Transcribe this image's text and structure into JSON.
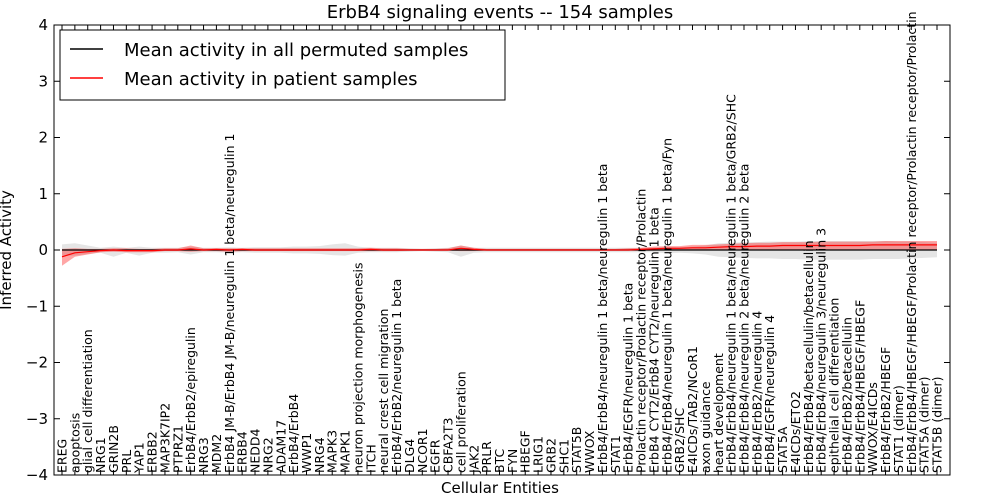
{
  "chart_data": {
    "type": "line",
    "title": "ErbB4 signaling events -- 154 samples",
    "xlabel": "Cellular Entities",
    "ylabel": "Inferred Activity",
    "ylim": [
      -4,
      4
    ],
    "yticks": [
      -4,
      -3,
      -2,
      -1,
      0,
      1,
      2,
      3,
      4
    ],
    "grid": false,
    "legend_position": "top-left",
    "categories": [
      "EREG",
      "apoptosis",
      "glial cell differentiation",
      "NRG1",
      "GRIN2B",
      "PRL",
      "YAP1",
      "ERBB2",
      "MAP3K7IP2",
      "PTPRZ1",
      "ErbB4/ErbB2/epiregulin",
      "NRG3",
      "MDM2",
      "ErbB4 JM-B/ErbB4 JM-B/neuregulin 1 beta/neuregulin 1",
      "ERBB4",
      "NEDD4",
      "NRG2",
      "ADAM17",
      "ErbB4/ErbB4",
      "WWP1",
      "NRG4",
      "MAPK3",
      "MAPK1",
      "neuron projection morphogenesis",
      "ITCH",
      "neural crest cell migration",
      "ErbB4/ErbB2/neuregulin 1 beta",
      "DLG4",
      "NCOR1",
      "EGFR",
      "CBFA2T3",
      "cell proliferation",
      "JAK2",
      "PRLR",
      "BTC",
      "FYN",
      "HBEGF",
      "LRIG1",
      "GRB2",
      "SHC1",
      "STAT5B",
      "WWOX",
      "ErbB4/ErbB4/neuregulin 1 beta/neuregulin 1 beta",
      "STAT1",
      "ErbB4/EGFR/neuregulin 1 beta",
      "Prolactin receptor/Prolactin receptor/Prolactin",
      "ErbB4 CYT2/ErbB4 CYT2/neuregulin 1 beta",
      "ErbB4/ErbB4/neuregulin 1 beta/neuregulin 1 beta/Fyn",
      "GRB2/SHC",
      "E4ICDs/TAB2/NCoR1",
      "axon guidance",
      "heart development",
      "ErbB4/ErbB4/neuregulin 1 beta/neuregulin 1 beta/GRB2/SHC",
      "ErbB4/ErbB4/neuregulin 2 beta/neuregulin 2 beta",
      "ErbB4/ErbB2/neuregulin 4",
      "ErbB4/EGFR/neuregulin 4",
      "STAT5A",
      "E4ICDs/ETO2",
      "ErbB4/ErbB4/betacellulin/betacellulin",
      "ErbB4/ErbB4/neuregulin 3/neuregulin 3",
      "epithelial cell differentiation",
      "ErbB4/ErbB2/betacellulin",
      "ErbB4/ErbB4/HBEGF/HBEGF",
      "WWOX/E4ICDs",
      "ErbB4/ErbB2/HBEGF",
      "STAT1 (dimer)",
      "ErbB4/ErbB4/HBEGF/HBEGF/Prolactin receptor/Prolactin receptor/Prolactin",
      "STAT5A (dimer)",
      "STAT5B (dimer)"
    ],
    "series": [
      {
        "name": "Mean activity in all permuted samples",
        "color": "#000000",
        "values": [
          0.0,
          0.0,
          0.0,
          0.0,
          0.0,
          0.0,
          0.0,
          0.0,
          0.0,
          0.0,
          0.0,
          0.0,
          0.0,
          0.0,
          0.0,
          0.0,
          0.0,
          0.0,
          0.0,
          0.0,
          0.0,
          0.0,
          0.0,
          0.0,
          0.0,
          0.0,
          0.0,
          0.0,
          0.0,
          0.0,
          0.0,
          0.0,
          0.0,
          0.0,
          0.0,
          0.0,
          0.0,
          0.0,
          0.0,
          0.0,
          0.0,
          0.0,
          0.0,
          0.0,
          0.0,
          0.0,
          0.0,
          0.0,
          0.0,
          0.0,
          0.0,
          0.0,
          0.0,
          0.0,
          0.0,
          0.0,
          0.0,
          0.0,
          0.0,
          0.0,
          0.0,
          0.0,
          0.0,
          0.0,
          0.0,
          0.0,
          0.0,
          0.0,
          0.0
        ],
        "band_low": [
          -0.1,
          -0.1,
          -0.07,
          -0.05,
          -0.12,
          -0.05,
          -0.1,
          -0.05,
          -0.05,
          -0.04,
          -0.08,
          -0.04,
          -0.04,
          -0.05,
          -0.04,
          -0.05,
          -0.05,
          -0.05,
          -0.06,
          -0.06,
          -0.07,
          -0.09,
          -0.1,
          -0.05,
          -0.04,
          -0.04,
          -0.04,
          -0.03,
          -0.02,
          -0.03,
          -0.04,
          -0.12,
          -0.05,
          -0.04,
          -0.04,
          -0.04,
          -0.04,
          -0.04,
          -0.04,
          -0.04,
          -0.04,
          -0.04,
          -0.04,
          -0.04,
          -0.04,
          -0.04,
          -0.04,
          -0.06,
          -0.05,
          -0.06,
          -0.08,
          -0.12,
          -0.13,
          -0.14,
          -0.15,
          -0.15,
          -0.16,
          -0.16,
          -0.17,
          -0.17,
          -0.17,
          -0.17,
          -0.17,
          -0.16,
          -0.16,
          -0.16,
          -0.15,
          -0.14,
          -0.13
        ],
        "band_high": [
          0.1,
          0.12,
          0.08,
          0.04,
          0.06,
          0.04,
          0.06,
          0.04,
          0.04,
          0.04,
          0.06,
          0.04,
          0.04,
          0.05,
          0.04,
          0.05,
          0.05,
          0.05,
          0.06,
          0.06,
          0.07,
          0.1,
          0.12,
          0.06,
          0.04,
          0.04,
          0.04,
          0.03,
          0.02,
          0.03,
          0.04,
          0.08,
          0.04,
          0.04,
          0.04,
          0.04,
          0.04,
          0.04,
          0.04,
          0.04,
          0.04,
          0.04,
          0.04,
          0.04,
          0.04,
          0.04,
          0.04,
          0.06,
          0.05,
          0.06,
          0.08,
          0.12,
          0.13,
          0.14,
          0.14,
          0.15,
          0.15,
          0.15,
          0.16,
          0.16,
          0.16,
          0.16,
          0.16,
          0.16,
          0.16,
          0.15,
          0.15,
          0.14,
          0.13
        ]
      },
      {
        "name": "Mean activity in patient samples",
        "color": "#ff0000",
        "values": [
          -0.12,
          -0.05,
          -0.03,
          -0.01,
          0.0,
          -0.01,
          -0.01,
          -0.01,
          0.0,
          0.0,
          0.02,
          0.0,
          0.01,
          0.0,
          0.01,
          0.0,
          0.0,
          0.0,
          0.0,
          0.0,
          0.0,
          0.0,
          0.0,
          0.0,
          0.01,
          0.0,
          0.0,
          0.0,
          0.0,
          0.0,
          0.0,
          0.03,
          0.01,
          0.0,
          0.0,
          0.0,
          0.0,
          0.0,
          0.0,
          0.0,
          0.0,
          0.0,
          0.0,
          0.0,
          0.0,
          0.01,
          0.02,
          0.03,
          0.03,
          0.04,
          0.04,
          0.05,
          0.06,
          0.06,
          0.07,
          0.07,
          0.08,
          0.08,
          0.08,
          0.08,
          0.08,
          0.08,
          0.08,
          0.09,
          0.09,
          0.09,
          0.09,
          0.09,
          0.09
        ],
        "band_low": [
          -0.28,
          -0.12,
          -0.08,
          -0.04,
          -0.03,
          -0.04,
          -0.04,
          -0.04,
          -0.02,
          -0.02,
          -0.03,
          -0.02,
          -0.02,
          -0.03,
          -0.02,
          -0.02,
          -0.02,
          -0.02,
          -0.02,
          -0.02,
          -0.02,
          -0.02,
          -0.02,
          -0.02,
          -0.02,
          -0.02,
          -0.02,
          -0.01,
          -0.01,
          -0.01,
          -0.01,
          -0.02,
          -0.02,
          -0.01,
          -0.01,
          -0.01,
          -0.01,
          -0.01,
          -0.01,
          -0.01,
          -0.01,
          -0.01,
          -0.01,
          -0.01,
          -0.01,
          -0.01,
          -0.01,
          0.0,
          0.0,
          0.0,
          0.0,
          0.0,
          0.0,
          0.0,
          0.0,
          0.0,
          0.0,
          0.0,
          0.0,
          0.0,
          0.0,
          0.0,
          0.0,
          0.0,
          0.0,
          0.0,
          0.0,
          0.0,
          0.0
        ],
        "band_high": [
          0.02,
          0.03,
          0.02,
          0.02,
          0.03,
          0.03,
          0.02,
          0.02,
          0.03,
          0.03,
          0.08,
          0.03,
          0.03,
          0.03,
          0.03,
          0.03,
          0.03,
          0.03,
          0.03,
          0.03,
          0.03,
          0.03,
          0.03,
          0.03,
          0.04,
          0.03,
          0.03,
          0.02,
          0.02,
          0.02,
          0.03,
          0.08,
          0.04,
          0.02,
          0.02,
          0.02,
          0.02,
          0.02,
          0.02,
          0.02,
          0.02,
          0.02,
          0.02,
          0.02,
          0.03,
          0.04,
          0.06,
          0.07,
          0.07,
          0.09,
          0.09,
          0.1,
          0.11,
          0.12,
          0.13,
          0.13,
          0.14,
          0.14,
          0.14,
          0.15,
          0.15,
          0.15,
          0.15,
          0.15,
          0.16,
          0.16,
          0.16,
          0.16,
          0.16
        ]
      }
    ]
  }
}
